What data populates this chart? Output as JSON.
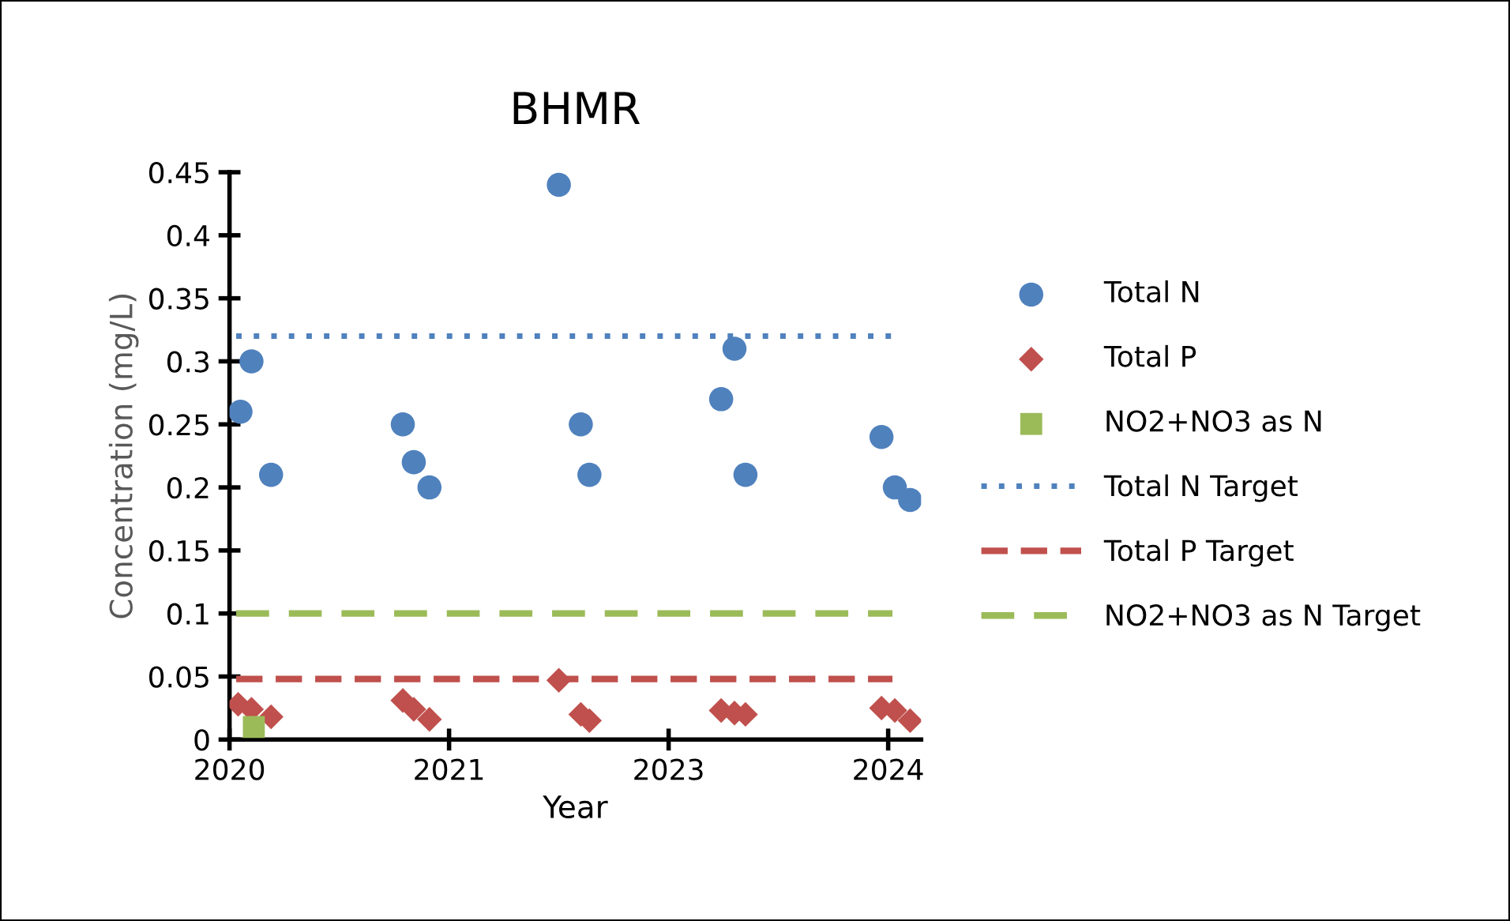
{
  "chart_data": {
    "type": "scatter",
    "title": "BHMR",
    "xlabel": "Year",
    "ylabel": "Concentration (mg/L)",
    "xlim": [
      "2020-01-01",
      "2024-10-30"
    ],
    "xticks": [
      {
        "value": "2020-01-01",
        "label": "2020"
      },
      {
        "value": "2021-07-14",
        "label": "2021"
      },
      {
        "value": "2023-01-25",
        "label": "2023"
      },
      {
        "value": "2024-08-07",
        "label": "2024"
      }
    ],
    "ylim": [
      0,
      0.45
    ],
    "yticks": [
      0,
      0.05,
      0.1,
      0.15,
      0.2,
      0.25,
      0.3,
      0.35,
      0.4,
      0.45
    ],
    "grid": false,
    "legend": "right",
    "series": [
      {
        "name": "Total N",
        "marker": "circle",
        "color": "#4f81bd",
        "x": [
          "2020-01-29",
          "2020-02-26",
          "2020-04-16",
          "2021-03-18",
          "2021-04-15",
          "2021-05-25",
          "2022-04-20",
          "2022-06-15",
          "2022-07-07",
          "2023-06-08",
          "2023-07-12",
          "2023-08-09",
          "2024-07-21",
          "2024-08-24",
          "2024-10-02"
        ],
        "values": [
          0.26,
          0.3,
          0.21,
          0.25,
          0.22,
          0.2,
          0.44,
          0.25,
          0.21,
          0.27,
          0.31,
          0.21,
          0.24,
          0.2,
          0.19
        ]
      },
      {
        "name": "Total P",
        "marker": "diamond",
        "color": "#c0504d",
        "x": [
          "2020-01-23",
          "2020-02-26",
          "2020-04-16",
          "2021-03-18",
          "2021-04-15",
          "2021-05-25",
          "2022-04-20",
          "2022-06-15",
          "2022-07-07",
          "2023-06-08",
          "2023-07-12",
          "2023-08-09",
          "2024-07-21",
          "2024-08-24",
          "2024-10-02"
        ],
        "values": [
          0.028,
          0.024,
          0.018,
          0.031,
          0.024,
          0.016,
          0.047,
          0.02,
          0.015,
          0.023,
          0.021,
          0.02,
          0.025,
          0.023,
          0.015
        ]
      },
      {
        "name": "NO2+NO3 as N",
        "marker": "square",
        "color": "#9bbb59",
        "x": [
          "2020-03-03"
        ],
        "values": [
          0.01
        ]
      },
      {
        "name": "Total N Target",
        "type": "line",
        "line_style": "dotted",
        "color": "#4f81bd",
        "x": [
          "2020-01-18",
          "2024-08-18"
        ],
        "values": [
          0.32,
          0.32
        ]
      },
      {
        "name": "Total P Target",
        "type": "line",
        "line_style": "dashed",
        "color": "#c0504d",
        "x": [
          "2020-01-18",
          "2024-08-18"
        ],
        "values": [
          0.048,
          0.048
        ]
      },
      {
        "name": "NO2+NO3 as N Target",
        "type": "line",
        "line_style": "dashed",
        "color": "#9bbb59",
        "x": [
          "2020-01-18",
          "2024-08-18"
        ],
        "values": [
          0.1,
          0.1
        ]
      }
    ]
  }
}
